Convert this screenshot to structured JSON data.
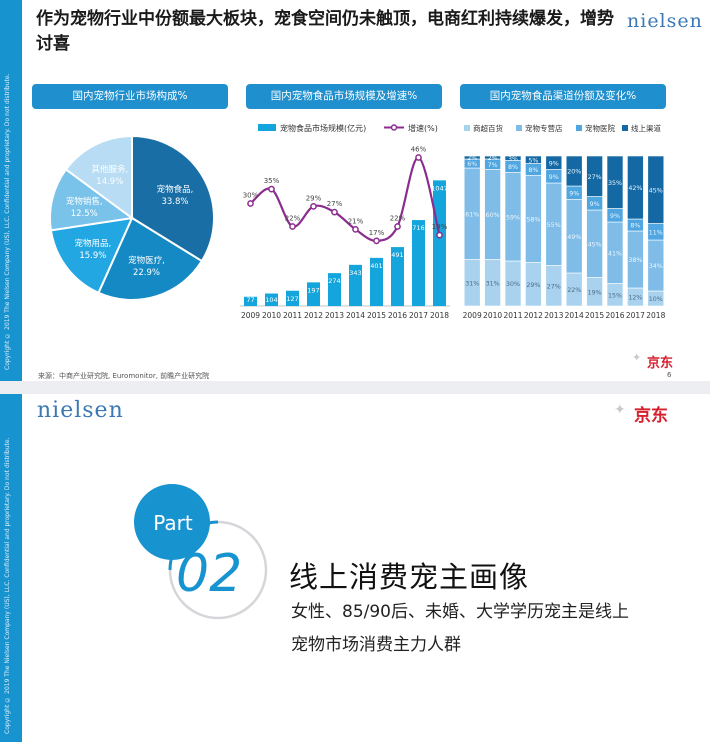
{
  "slide1": {
    "title": "作为宠物行业中份额最大板块，宠食空间仍未触顶，电商红利持续爆发，增势讨喜",
    "logo": "nielsen",
    "panels": {
      "left": "国内宠物行业市场构成%",
      "mid": "国内宠物食品市场规模及增速%",
      "right": "国内宠物食品渠道份额及变化%"
    },
    "source_note": "来源：中商产业研究院, Euromonitor, 前瞻产业研究院",
    "page_number": "6",
    "partner_logo": "京东",
    "side_note": "Copyright © 2019 The Nielsen Company (US), LLC. Confidential and proprietary. Do not distribute."
  },
  "slide2": {
    "logo": "nielsen",
    "partner_logo": "京东",
    "part_label": "Part",
    "part_number": "02",
    "heading": "线上消费宠主画像",
    "body_line1": "女性、85/90后、未婚、大学学历宠主是线上",
    "body_line2": "宠物市场消费主力人群",
    "side_note": "Copyright © 2019 The Nielsen Company (US), LLC. Confidential and proprietary. Do not distribute."
  },
  "colors": {
    "brand_blue": "#1f8fce",
    "line_purple": "#8b2d8f",
    "bar_blue": "#14a5dc",
    "jd_red": "#d6202e"
  },
  "chart_data": [
    {
      "type": "pie",
      "title": "国内宠物行业市场构成%",
      "slices": [
        {
          "name": "宠物食品",
          "value": 33.8,
          "label": "宠物食品, 33.8%",
          "color": "#1a6ea6"
        },
        {
          "name": "宠物医疗",
          "value": 22.9,
          "label": "宠物医疗, 22.9%",
          "color": "#1589c4"
        },
        {
          "name": "宠物用品",
          "value": 15.9,
          "label": "宠物用品, 15.9%",
          "color": "#22a7e3"
        },
        {
          "name": "宠物销售",
          "value": 12.5,
          "label": "宠物销售, 12.5%",
          "color": "#79c3eb"
        },
        {
          "name": "其他服务",
          "value": 14.9,
          "label": "其他服务, 14.9%",
          "color": "#b7dcf4"
        }
      ]
    },
    {
      "type": "bar",
      "title": "国内宠物食品市场规模及增速%",
      "categories": [
        "2009",
        "2010",
        "2011",
        "2012",
        "2013",
        "2014",
        "2015",
        "2016",
        "2017",
        "2018"
      ],
      "series": [
        {
          "name": "宠物食品市场规模(亿元)",
          "type": "bar",
          "values": [
            77,
            104,
            127,
            197,
            274,
            343,
            401,
            491,
            716,
            1047
          ]
        },
        {
          "name": "增速(%)",
          "type": "line",
          "values": [
            30,
            35,
            22,
            29,
            27,
            21,
            17,
            22,
            46,
            19
          ]
        }
      ],
      "bar_labels": [
        "77",
        "104",
        "127",
        "197",
        "274",
        "343",
        "401",
        "491",
        "716",
        "1047"
      ],
      "line_labels": [
        "30%",
        "35%",
        "22%",
        "29%",
        "27%",
        "21%",
        "17%",
        "22%",
        "46%",
        "19%"
      ],
      "ylim_bar": [
        0,
        1250
      ],
      "ylim_line": [
        10,
        50
      ]
    },
    {
      "type": "bar",
      "stacked": true,
      "title": "国内宠物食品渠道份额及变化%",
      "categories": [
        "2009",
        "2010",
        "2011",
        "2012",
        "2013",
        "2014",
        "2015",
        "2016",
        "2017",
        "2018"
      ],
      "series": [
        {
          "name": "商超百货",
          "color": "#a9d2ef",
          "values": [
            31,
            31,
            30,
            29,
            27,
            22,
            19,
            15,
            12,
            10
          ],
          "labels": [
            "31%",
            "31%",
            "30%",
            "29%",
            "27%",
            "22%",
            "19%",
            "15%",
            "12%",
            "10%"
          ]
        },
        {
          "name": "宠物专营店",
          "color": "#7fbde8",
          "values": [
            61,
            60,
            59,
            58,
            55,
            49,
            45,
            41,
            38,
            34
          ],
          "labels": [
            "61%",
            "60%",
            "59%",
            "58%",
            "55%",
            "49%",
            "45%",
            "41%",
            "38%",
            "34%"
          ]
        },
        {
          "name": "宠物医院",
          "color": "#4fa6e0",
          "values": [
            6,
            7,
            8,
            8,
            9,
            9,
            9,
            9,
            8,
            11
          ],
          "labels": [
            "6%",
            "7%",
            "8%",
            "8%",
            "9%",
            "9%",
            "9%",
            "9%",
            "8%",
            "11%"
          ]
        },
        {
          "name": "线上渠道",
          "color": "#1469a4",
          "values": [
            2,
            2,
            3,
            5,
            9,
            20,
            27,
            35,
            42,
            45
          ],
          "labels": [
            "2%",
            "2%",
            "3%",
            "5%",
            "9%",
            "20%",
            "27%",
            "35%",
            "42%",
            "45%"
          ]
        }
      ],
      "ylim": [
        0,
        100
      ]
    }
  ]
}
